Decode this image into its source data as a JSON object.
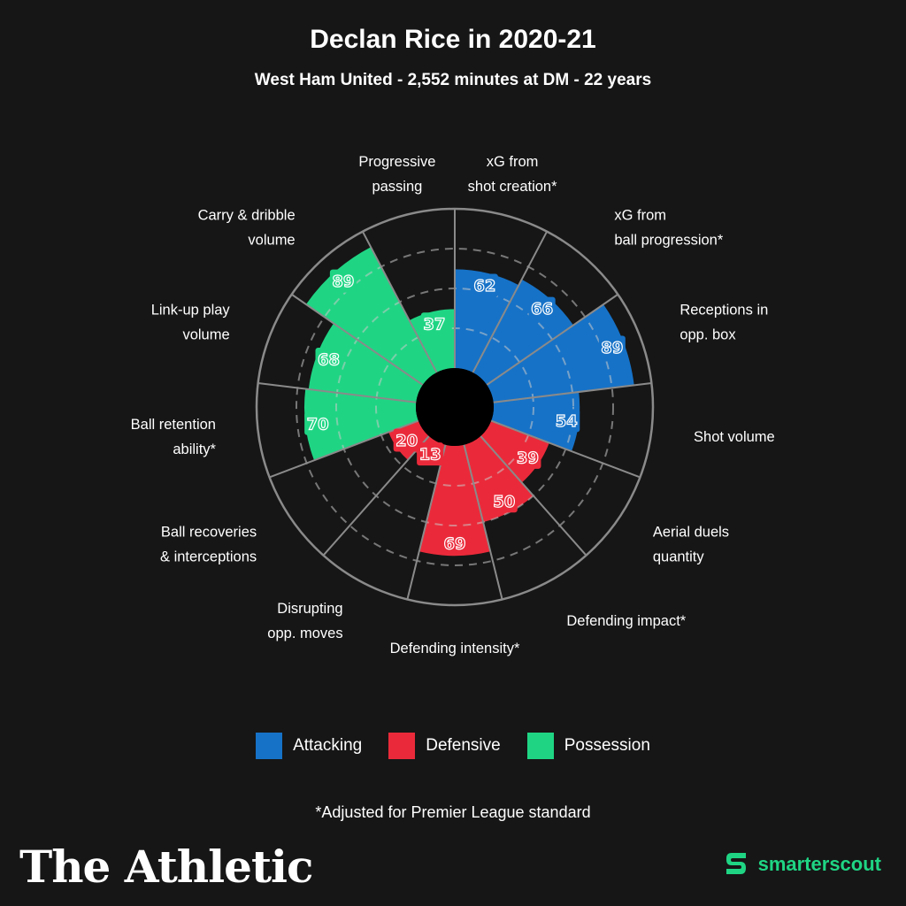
{
  "header": {
    "title": "Declan Rice in 2020-21",
    "subtitle": "West Ham United - 2,552 minutes at DM - 22 years"
  },
  "chart_data": {
    "type": "polar-bar",
    "scale": [
      0,
      100
    ],
    "grid": true,
    "categories": [
      {
        "label": [
          "xG from",
          "shot creation*"
        ],
        "value": 62,
        "group": "Attacking"
      },
      {
        "label": [
          "xG from",
          "ball progression*"
        ],
        "value": 66,
        "group": "Attacking"
      },
      {
        "label": [
          "Receptions in",
          "opp. box"
        ],
        "value": 89,
        "group": "Attacking"
      },
      {
        "label": [
          "Shot volume"
        ],
        "value": 54,
        "group": "Attacking"
      },
      {
        "label": [
          "Aerial duels",
          "quantity"
        ],
        "value": 39,
        "group": "Defensive"
      },
      {
        "label": [
          "Defending impact*"
        ],
        "value": 50,
        "group": "Defensive"
      },
      {
        "label": [
          "Defending intensity*"
        ],
        "value": 69,
        "group": "Defensive"
      },
      {
        "label": [
          "Disrupting",
          "opp. moves"
        ],
        "value": 13,
        "group": "Defensive"
      },
      {
        "label": [
          "Ball recoveries",
          "& interceptions"
        ],
        "value": 20,
        "group": "Defensive"
      },
      {
        "label": [
          "Ball retention",
          "ability*"
        ],
        "value": 70,
        "group": "Possession"
      },
      {
        "label": [
          "Link-up play",
          "volume"
        ],
        "value": 68,
        "group": "Possession"
      },
      {
        "label": [
          "Carry & dribble",
          "volume"
        ],
        "value": 89,
        "group": "Possession"
      },
      {
        "label": [
          "Progressive",
          "passing"
        ],
        "value": 37,
        "group": "Possession"
      }
    ],
    "groups": [
      {
        "name": "Attacking",
        "color": "#1672c7"
      },
      {
        "name": "Defensive",
        "color": "#ea2a3a"
      },
      {
        "name": "Possession",
        "color": "#1fd584"
      }
    ],
    "legend_position": "bottom"
  },
  "legend": {
    "attacking": "Attacking",
    "defensive": "Defensive",
    "possession": "Possession"
  },
  "footnote": "*Adjusted for Premier League standard",
  "brand": {
    "left": "The Athletic",
    "right": "smarterscout",
    "right_color": "#1fd584"
  }
}
